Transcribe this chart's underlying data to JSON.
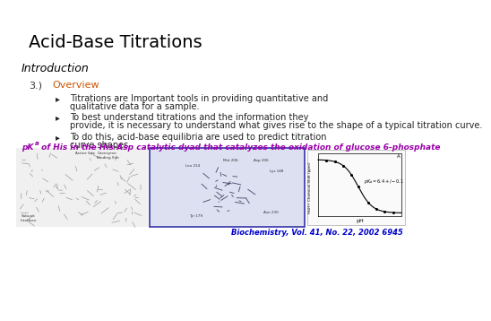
{
  "title": "Acid-Base Titrations",
  "title_fontsize": 14,
  "title_color": "#000000",
  "intro_label": "Introduction",
  "intro_fontsize": 9,
  "intro_color": "#000000",
  "section_num": "3.)",
  "section_color": "#333333",
  "section_fontsize": 8,
  "overview_label": "Overview",
  "overview_color": "#CC5500",
  "overview_fontsize": 8,
  "bullets": [
    "Titrations are Important tools in providing quantitative and qualitative data for a sample.",
    "To best understand titrations and the information they provide, it is necessary to understand what gives rise to the shape of a typical titration curve.",
    "To do this, acid-base equilibria are used to predict titration curve shapes."
  ],
  "bullet_fontsize": 7,
  "bullet_color": "#222222",
  "caption_text": "pK",
  "caption_sub": "a",
  "caption_rest": " of His in the His·Asp catalytic dyad that catalyzes the oxidation of glucose 6-phosphate",
  "caption_color": "#9900AA",
  "caption_fontsize": 6.5,
  "citation": "Biochemistry, Vol. 41, No. 22, 2002 6945",
  "citation_color": "#0000CC",
  "citation_fontsize": 6,
  "bg_color": "#FFFFFF"
}
